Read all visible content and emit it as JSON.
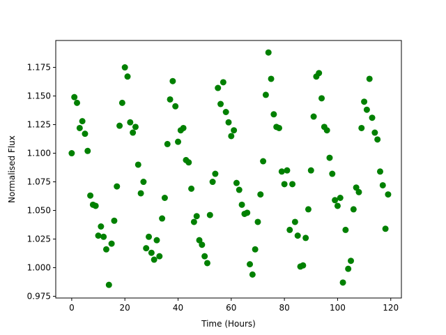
{
  "chart_data": {
    "type": "scatter",
    "title": "",
    "xlabel": "Time (Hours)",
    "ylabel": "Normalised Flux",
    "xlim": [
      -6,
      124
    ],
    "ylim": [
      0.9735,
      1.1985
    ],
    "x_ticks": [
      0,
      20,
      40,
      60,
      80,
      100,
      120
    ],
    "y_ticks": [
      0.975,
      1.0,
      1.025,
      1.05,
      1.075,
      1.1,
      1.125,
      1.15,
      1.175
    ],
    "y_tick_labels": [
      "0.975",
      "1.000",
      "1.025",
      "1.050",
      "1.075",
      "1.100",
      "1.125",
      "1.150",
      "1.175"
    ],
    "grid": false,
    "legend": "none",
    "marker_color": "#008000",
    "series": [
      {
        "x": [
          0,
          1,
          2,
          3,
          4,
          5,
          6,
          7,
          8,
          9,
          10,
          11,
          12,
          13,
          14,
          15,
          16,
          17,
          18,
          19,
          20,
          21,
          22,
          23,
          24,
          25,
          26,
          27,
          28,
          29,
          30,
          31,
          32,
          33,
          34,
          35,
          36,
          37,
          38,
          39,
          40,
          41,
          42,
          43,
          44,
          45,
          46,
          47,
          48,
          49,
          50,
          51,
          52,
          53,
          54,
          55,
          56,
          57,
          58,
          59,
          60,
          61,
          62,
          63,
          64,
          65,
          66,
          67,
          68,
          69,
          70,
          71,
          72,
          73,
          74,
          75,
          76,
          77,
          78,
          79,
          80,
          81,
          82,
          83,
          84,
          85,
          86,
          87,
          88,
          89,
          90,
          91,
          92,
          93,
          94,
          95,
          96,
          97,
          98,
          99,
          100,
          101,
          102,
          103,
          104,
          105,
          106,
          107,
          108,
          109,
          110,
          111,
          112,
          113,
          114,
          115,
          116,
          117,
          118,
          119
        ],
        "values": [
          1.1,
          1.149,
          1.144,
          1.122,
          1.128,
          1.117,
          1.102,
          1.063,
          1.055,
          1.054,
          1.028,
          1.036,
          1.027,
          1.016,
          0.985,
          1.021,
          1.041,
          1.071,
          1.124,
          1.144,
          1.175,
          1.167,
          1.127,
          1.118,
          1.123,
          1.09,
          1.065,
          1.075,
          1.017,
          1.027,
          1.013,
          1.007,
          1.024,
          1.01,
          1.043,
          1.061,
          1.108,
          1.147,
          1.163,
          1.141,
          1.11,
          1.12,
          1.122,
          1.094,
          1.092,
          1.069,
          1.04,
          1.045,
          1.024,
          1.02,
          1.01,
          1.004,
          1.046,
          1.075,
          1.082,
          1.157,
          1.143,
          1.162,
          1.136,
          1.127,
          1.115,
          1.12,
          1.074,
          1.068,
          1.055,
          1.047,
          1.048,
          1.003,
          0.994,
          1.016,
          1.04,
          1.064,
          1.093,
          1.151,
          1.188,
          1.165,
          1.134,
          1.123,
          1.122,
          1.084,
          1.073,
          1.085,
          1.033,
          1.073,
          1.04,
          1.028,
          1.001,
          1.002,
          1.026,
          1.051,
          1.085,
          1.132,
          1.167,
          1.17,
          1.148,
          1.123,
          1.12,
          1.096,
          1.082,
          1.059,
          1.054,
          1.061,
          0.987,
          1.033,
          0.999,
          1.006,
          1.051,
          1.07,
          1.066,
          1.122,
          1.145,
          1.138,
          1.165,
          1.131,
          1.118,
          1.112,
          1.084,
          1.072,
          1.034,
          1.064
        ]
      }
    ]
  }
}
